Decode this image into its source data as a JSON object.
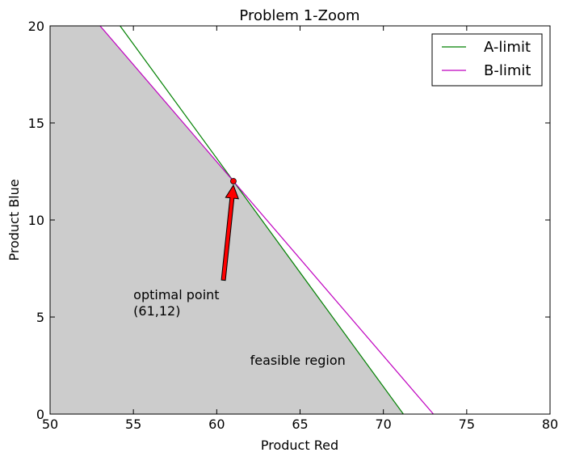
{
  "chart_data": {
    "type": "line",
    "title": "Problem 1-Zoom",
    "xlabel": "Product Red",
    "ylabel": "Product Blue",
    "xlim": [
      50,
      80
    ],
    "ylim": [
      0,
      20
    ],
    "xticks": [
      "50",
      "55",
      "60",
      "65",
      "70",
      "75",
      "80"
    ],
    "yticks": [
      "0",
      "5",
      "10",
      "15",
      "20"
    ],
    "legend_position": "top-right",
    "grid": false,
    "series": [
      {
        "name": "A-limit",
        "color": "#008000",
        "points": [
          [
            54.2,
            20
          ],
          [
            71.2,
            0
          ]
        ]
      },
      {
        "name": "B-limit",
        "color": "#bf00bf",
        "points": [
          [
            53,
            20
          ],
          [
            73,
            0
          ]
        ]
      }
    ],
    "feasible_region": {
      "color": "#cccccc",
      "polygon": [
        [
          50,
          0
        ],
        [
          50,
          20
        ],
        [
          53,
          20
        ],
        [
          61,
          12
        ],
        [
          71.2,
          0
        ]
      ],
      "label": "feasible region",
      "label_at": [
        62,
        2.5
      ]
    },
    "optimal_point": {
      "x": 61,
      "y": 12,
      "color": "#ff0000",
      "label_lines": [
        "optimal point",
        "(61,12)"
      ],
      "label_at": [
        55,
        5
      ],
      "arrow_from": [
        60.4,
        6.9
      ]
    }
  }
}
